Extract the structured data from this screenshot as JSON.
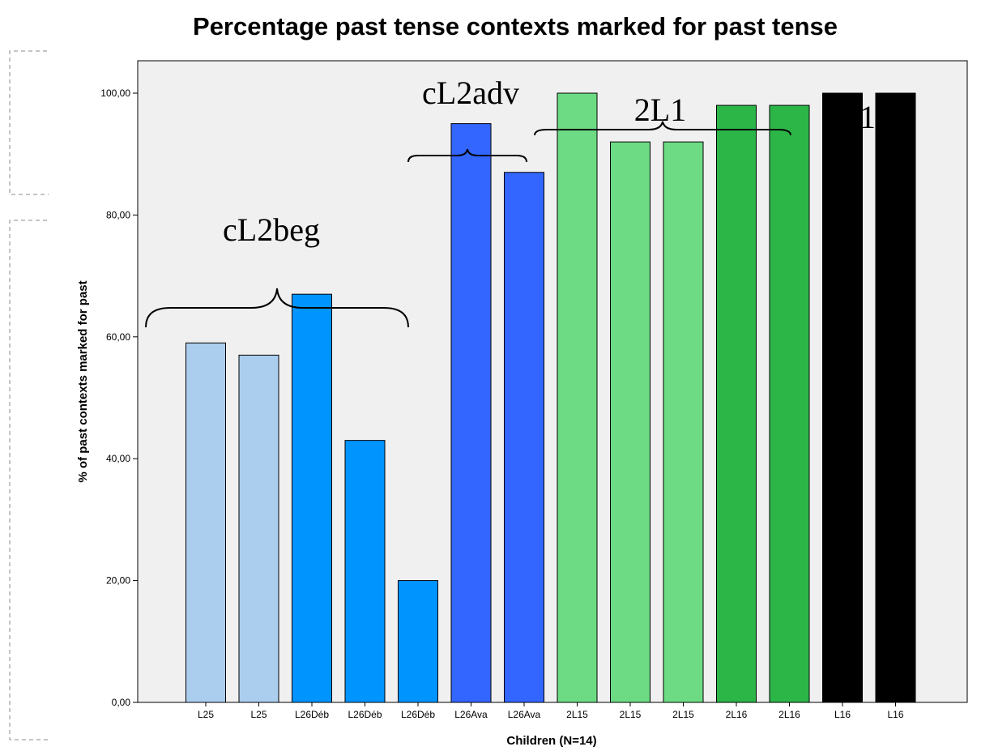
{
  "chart_data": {
    "type": "bar",
    "title": "Percentage past tense contexts marked for past tense",
    "xlabel": "Children (N=14)",
    "ylabel": "% of past contexts marked for past",
    "categories": [
      "L25",
      "L25",
      "L26Déb",
      "L26Déb",
      "L26Déb",
      "L26Ava",
      "L26Ava",
      "2L15",
      "2L15",
      "2L15",
      "2L16",
      "2L16",
      "L16",
      "L16"
    ],
    "values": [
      59,
      57,
      67,
      43,
      20,
      95,
      87,
      100,
      92,
      92,
      98,
      98,
      100,
      100
    ],
    "bar_colors": [
      "#abcdee",
      "#abcdee",
      "#0094ff",
      "#0094ff",
      "#0094ff",
      "#3366ff",
      "#3366ff",
      "#6ddb84",
      "#6ddb84",
      "#6ddb84",
      "#2cb648",
      "#2cb648",
      "#000000",
      "#000000"
    ],
    "y_ticks": [
      "0,00",
      "20,00",
      "40,00",
      "60,00",
      "80,00",
      "100,00"
    ],
    "ylim": [
      0,
      100
    ],
    "grid": false,
    "plot_background": "#f0f0f0",
    "group_labels": [
      "cL2beg",
      "cL2adv",
      "2L1",
      "1"
    ]
  }
}
